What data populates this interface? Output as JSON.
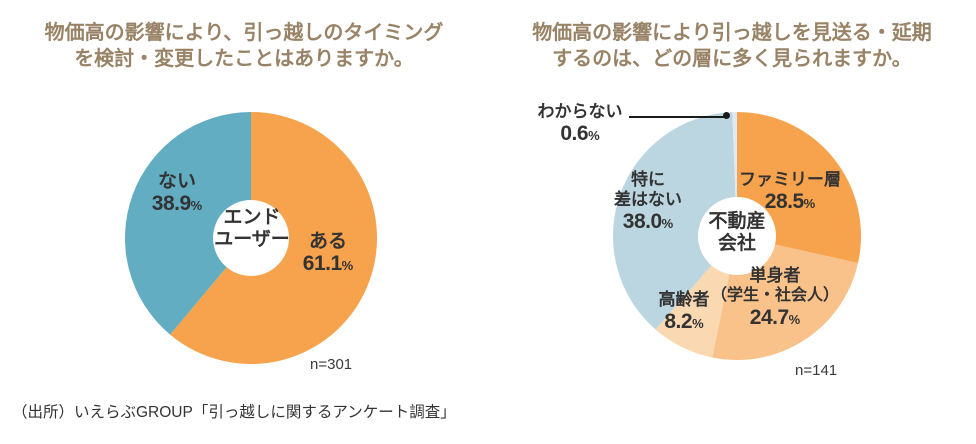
{
  "percent_sign": "%",
  "source": "（出所）いえらぶGROUP「引っ越しに関するアンケート調査」",
  "chart_data": [
    {
      "type": "pie",
      "subtype": "donut",
      "panel": "left",
      "title": "物価高の影響により、引っ越しのタイミングを検討・変更したことはありますか。",
      "title_lines": [
        "物価高の影響により、引っ越しのタイミング",
        "を検討・変更したことはありますか。"
      ],
      "center_label": "エンドユーザー",
      "center_lines": [
        "エンド",
        "ユーザー"
      ],
      "sample_size": "n=301",
      "start_angle_deg": 0,
      "direction": "clockwise",
      "segments": [
        {
          "label": "ある",
          "value": 61.1,
          "pct": "61.1",
          "color": "#F7A24C"
        },
        {
          "label": "ない",
          "value": 38.9,
          "pct": "38.9",
          "color": "#62ADC1"
        }
      ]
    },
    {
      "type": "pie",
      "subtype": "donut",
      "panel": "right",
      "title": "物価高の影響により引っ越しを見送る・延期するのは、どの層に多く見られますか。",
      "title_lines": [
        "物価高の影響により引っ越しを見送る・延期",
        "するのは、どの層に多く見られますか。"
      ],
      "center_label": "不動産会社",
      "center_lines": [
        "不動産",
        "会社"
      ],
      "sample_size": "n=141",
      "start_angle_deg": 0,
      "direction": "clockwise",
      "segments": [
        {
          "label": "ファミリー層",
          "label_lines": [
            "ファミリー層"
          ],
          "value": 28.5,
          "pct": "28.5",
          "color": "#F7A24C"
        },
        {
          "label": "単身者（学生・社会人）",
          "label_lines": [
            "単身者",
            "（学生・社会人）"
          ],
          "value": 24.7,
          "pct": "24.7",
          "color": "#F9C28A"
        },
        {
          "label": "高齢者",
          "label_lines": [
            "高齢者"
          ],
          "value": 8.2,
          "pct": "8.2",
          "color": "#FAD9B2"
        },
        {
          "label": "特に差はない",
          "label_lines": [
            "特に",
            "差はない"
          ],
          "value": 38.0,
          "pct": "38.0",
          "color": "#BBD6E0"
        },
        {
          "label": "わからない",
          "label_lines": [
            "わからない"
          ],
          "value": 0.6,
          "pct": "0.6",
          "color": "#DFEAF0"
        }
      ]
    }
  ]
}
